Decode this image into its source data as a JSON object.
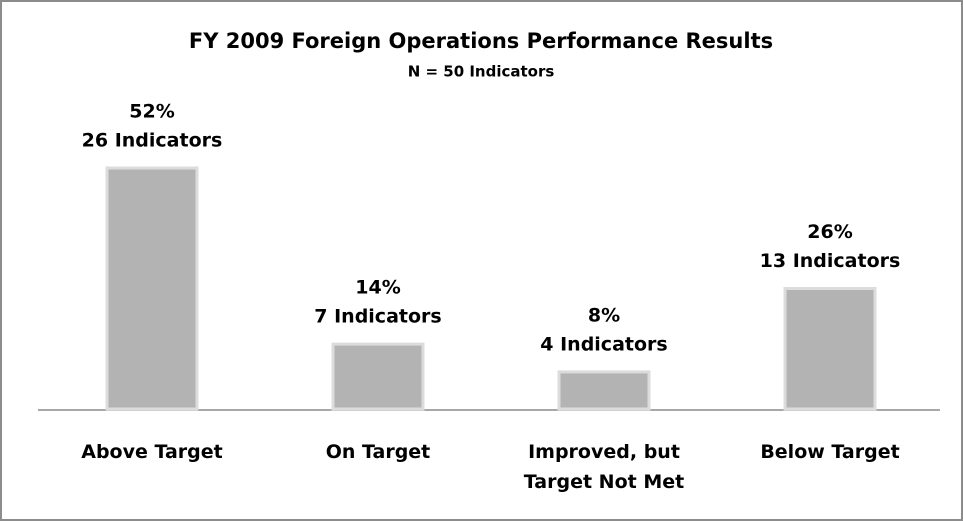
{
  "chart_data": {
    "type": "bar",
    "title": "FY 2009 Foreign Operations Performance Results",
    "subtitle": "N = 50 Indicators",
    "categories": [
      "Above Target",
      "On Target",
      "Improved, but Target Not Met",
      "Below Target"
    ],
    "values": [
      52,
      14,
      8,
      26
    ],
    "value_labels": [
      "52%",
      "14%",
      "8%",
      "26%"
    ],
    "indicator_labels": [
      "26 Indicators",
      "7 Indicators",
      "4 Indicators",
      "13 Indicators"
    ],
    "color": "#b3b3b3"
  }
}
